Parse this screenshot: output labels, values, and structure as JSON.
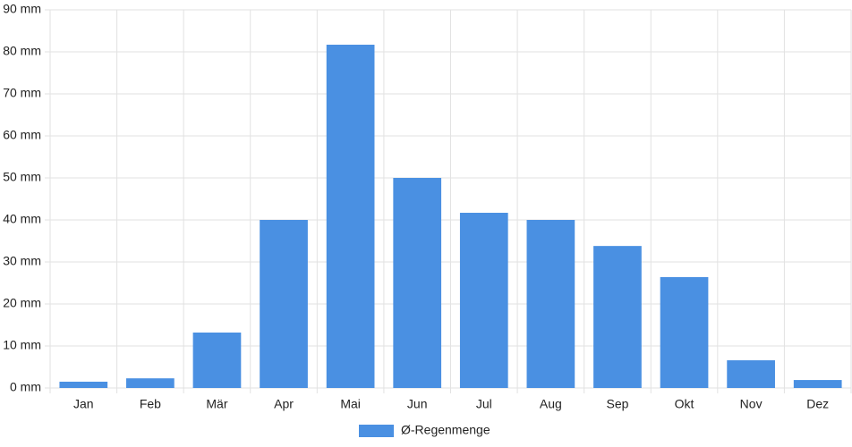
{
  "chart_data": {
    "type": "bar",
    "categories": [
      "Jan",
      "Feb",
      "Mär",
      "Apr",
      "Mai",
      "Jun",
      "Jul",
      "Aug",
      "Sep",
      "Okt",
      "Nov",
      "Dez"
    ],
    "series": [
      {
        "name": "Ø-Regenmenge",
        "color": "#4a90e2",
        "values": [
          1.5,
          2.3,
          13.2,
          40,
          81.7,
          50,
          41.7,
          40,
          33.8,
          26.4,
          6.6,
          1.9
        ]
      }
    ],
    "ylim": [
      0,
      90
    ],
    "yticks": [
      {
        "value": 0,
        "label": "0 mm"
      },
      {
        "value": 10,
        "label": "10 mm"
      },
      {
        "value": 20,
        "label": "20 mm"
      },
      {
        "value": 30,
        "label": "30 mm"
      },
      {
        "value": 40,
        "label": "40 mm"
      },
      {
        "value": 50,
        "label": "50 mm"
      },
      {
        "value": 60,
        "label": "60 mm"
      },
      {
        "value": 70,
        "label": "70 mm"
      },
      {
        "value": 80,
        "label": "80 mm"
      },
      {
        "value": 90,
        "label": "90 mm"
      }
    ],
    "grid": true,
    "legend": "bottom"
  }
}
